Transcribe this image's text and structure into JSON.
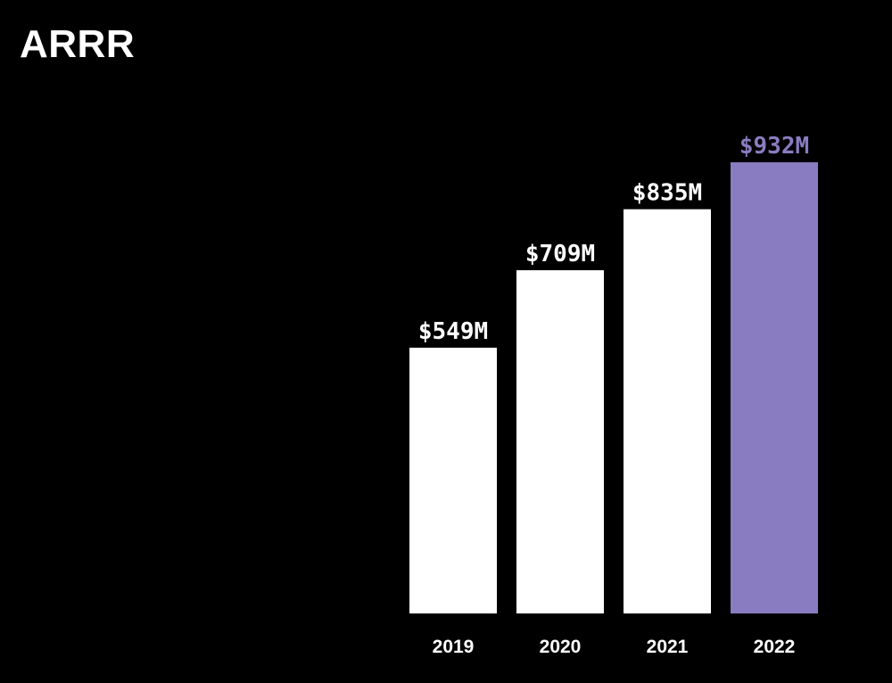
{
  "slide": {
    "title": "ARRR"
  },
  "chart_data": {
    "type": "bar",
    "title": "ARRR",
    "xlabel": "",
    "ylabel": "",
    "categories": [
      "2019",
      "2020",
      "2021",
      "2022"
    ],
    "values": [
      549,
      709,
      835,
      932
    ],
    "data_labels": [
      "$549M",
      "$709M",
      "$835M",
      "$932M"
    ],
    "unit": "$M",
    "ylim": [
      0,
      932
    ],
    "grid": false,
    "legend": "none",
    "colors": [
      "#ffffff",
      "#ffffff",
      "#ffffff",
      "#8a7cc0"
    ],
    "label_colors": [
      "#ffffff",
      "#ffffff",
      "#ffffff",
      "#8a7cc0"
    ]
  }
}
